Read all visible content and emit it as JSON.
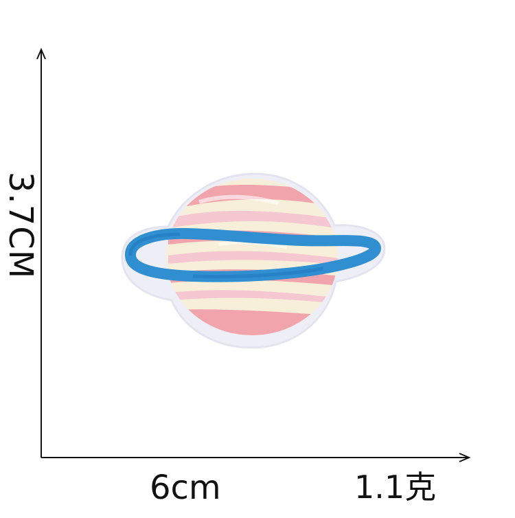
{
  "dimensions": {
    "height_label": "3.7CM",
    "width_label": "6cm",
    "weight_label": "1.1克"
  },
  "colors": {
    "background": "#ffffff",
    "axis": "#111111",
    "patch_backing": "#eeeef7",
    "planet_pink": "#f2a4ac",
    "planet_cream": "#f7efd9",
    "ring_blue": "#2f8fd0"
  },
  "icons": {
    "patch": "planet-patch-icon"
  }
}
